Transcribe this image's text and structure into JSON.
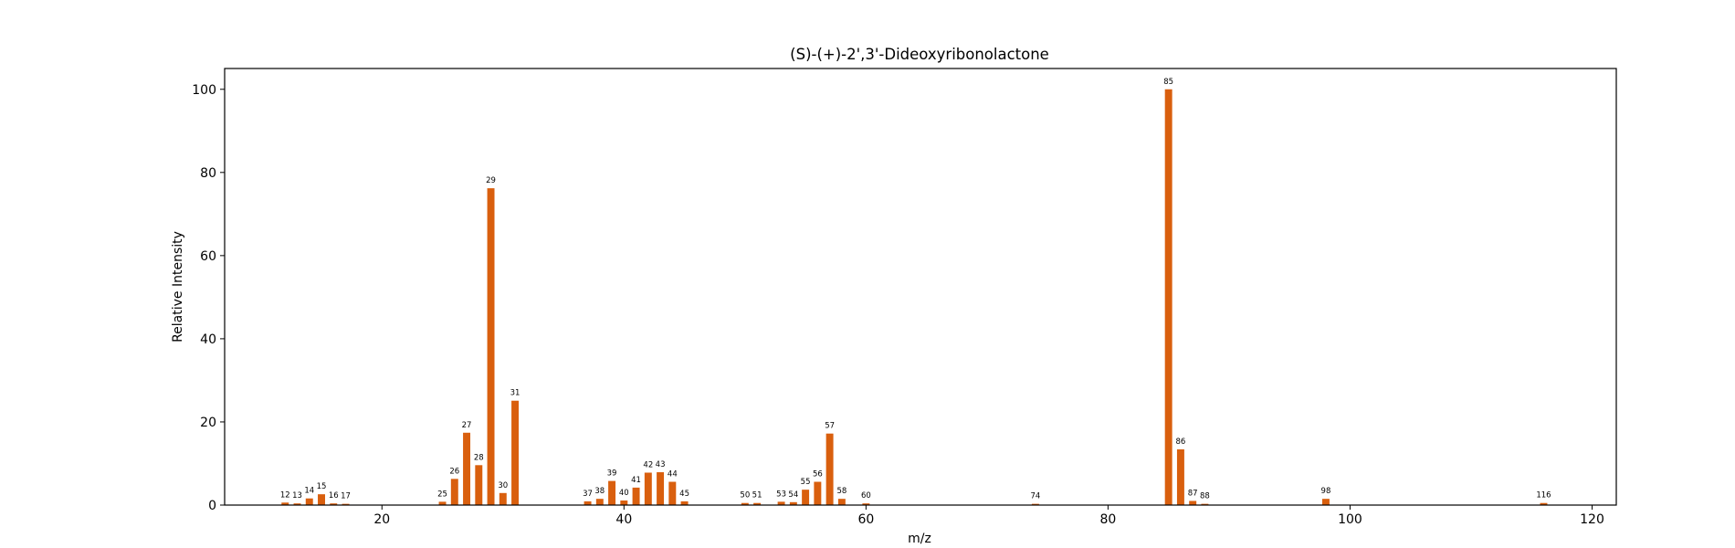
{
  "chart_data": {
    "type": "bar",
    "title": "(S)-(+)-2',3'-Dideoxyribonolactone",
    "xlabel": "m/z",
    "ylabel": "Relative Intensity",
    "xlim": [
      7,
      122
    ],
    "ylim": [
      0,
      105
    ],
    "xticks": [
      20,
      40,
      60,
      80,
      100,
      120
    ],
    "yticks": [
      0,
      20,
      40,
      60,
      80,
      100
    ],
    "grid": false,
    "bar_color": "#d95f0e",
    "points": [
      {
        "x": 12,
        "y": 0.6,
        "label": "12"
      },
      {
        "x": 13,
        "y": 0.4,
        "label": "13"
      },
      {
        "x": 14,
        "y": 1.6,
        "label": "14"
      },
      {
        "x": 15,
        "y": 2.6,
        "label": "15"
      },
      {
        "x": 16,
        "y": 0.4,
        "label": "16"
      },
      {
        "x": 17,
        "y": 0.3,
        "label": "17"
      },
      {
        "x": 25,
        "y": 0.8,
        "label": "25"
      },
      {
        "x": 26,
        "y": 6.3,
        "label": "26"
      },
      {
        "x": 27,
        "y": 17.4,
        "label": "27"
      },
      {
        "x": 28,
        "y": 9.6,
        "label": "28"
      },
      {
        "x": 29,
        "y": 76.2,
        "label": "29"
      },
      {
        "x": 30,
        "y": 2.9,
        "label": "30"
      },
      {
        "x": 31,
        "y": 25.1,
        "label": "31"
      },
      {
        "x": 37,
        "y": 0.9,
        "label": "37"
      },
      {
        "x": 38,
        "y": 1.5,
        "label": "38"
      },
      {
        "x": 39,
        "y": 5.8,
        "label": "39"
      },
      {
        "x": 40,
        "y": 1.1,
        "label": "40"
      },
      {
        "x": 41,
        "y": 4.2,
        "label": "41"
      },
      {
        "x": 42,
        "y": 7.8,
        "label": "42"
      },
      {
        "x": 43,
        "y": 7.9,
        "label": "43"
      },
      {
        "x": 44,
        "y": 5.6,
        "label": "44"
      },
      {
        "x": 45,
        "y": 0.9,
        "label": "45"
      },
      {
        "x": 50,
        "y": 0.5,
        "label": "50"
      },
      {
        "x": 51,
        "y": 0.5,
        "label": "51"
      },
      {
        "x": 53,
        "y": 0.8,
        "label": "53"
      },
      {
        "x": 54,
        "y": 0.7,
        "label": "54"
      },
      {
        "x": 55,
        "y": 3.7,
        "label": "55"
      },
      {
        "x": 56,
        "y": 5.6,
        "label": "56"
      },
      {
        "x": 57,
        "y": 17.2,
        "label": "57"
      },
      {
        "x": 58,
        "y": 1.5,
        "label": "58"
      },
      {
        "x": 60,
        "y": 0.4,
        "label": "60"
      },
      {
        "x": 74,
        "y": 0.3,
        "label": "74"
      },
      {
        "x": 85,
        "y": 100.0,
        "label": "85"
      },
      {
        "x": 86,
        "y": 13.4,
        "label": "86"
      },
      {
        "x": 87,
        "y": 1.0,
        "label": "87"
      },
      {
        "x": 88,
        "y": 0.3,
        "label": "88"
      },
      {
        "x": 98,
        "y": 1.5,
        "label": "98"
      },
      {
        "x": 116,
        "y": 0.5,
        "label": "116"
      }
    ]
  }
}
